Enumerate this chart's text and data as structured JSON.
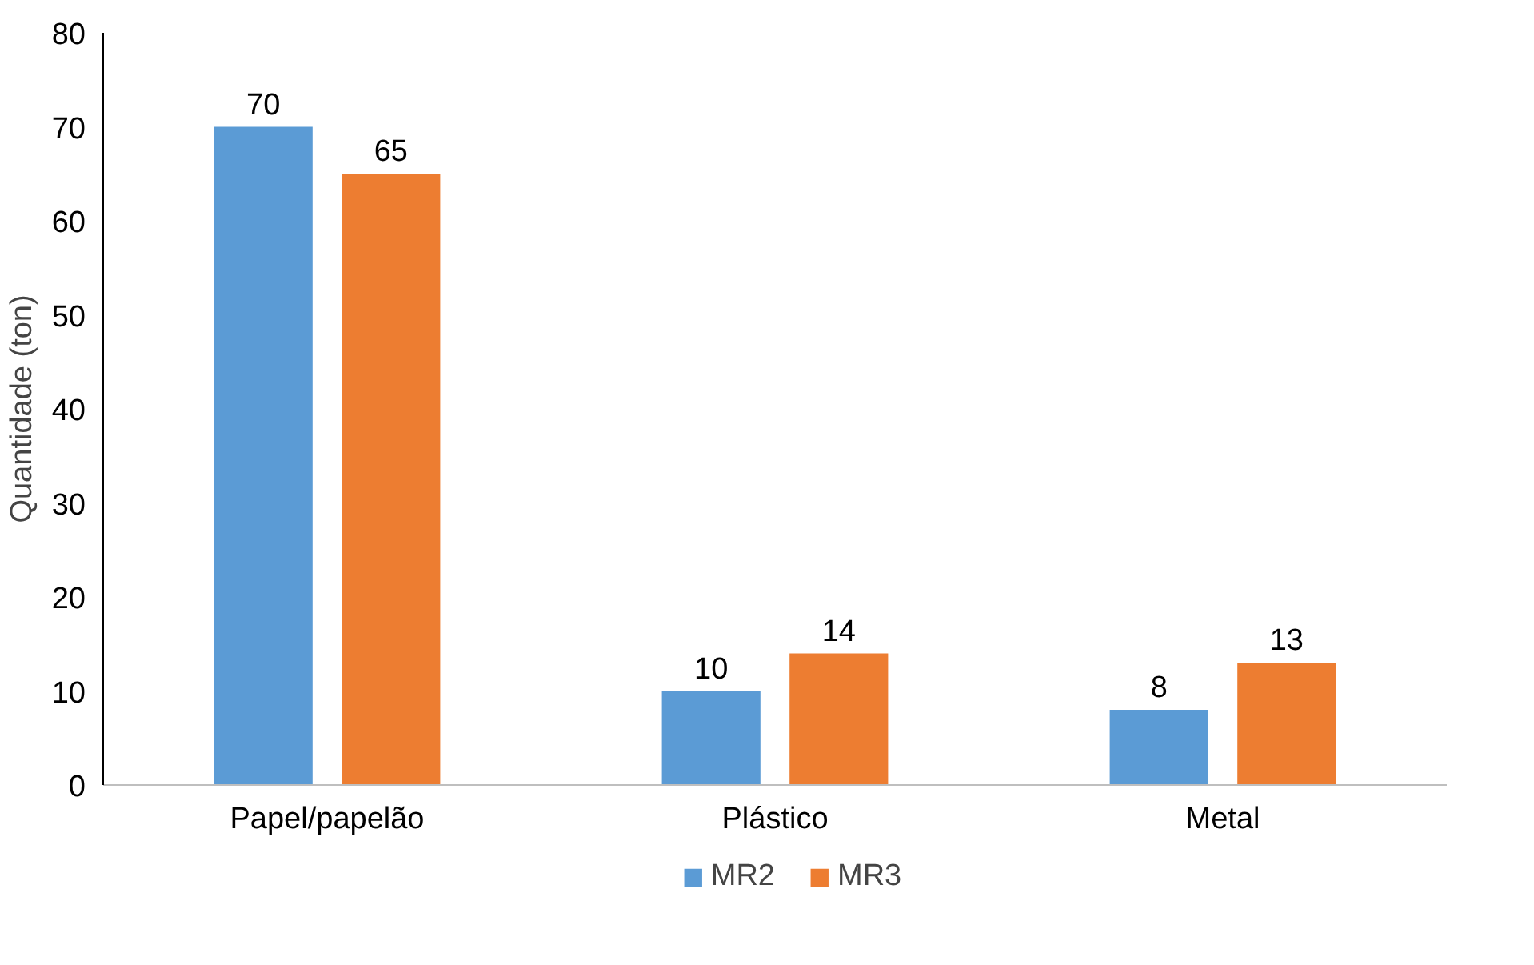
{
  "chart_data": {
    "type": "bar",
    "ylabel": "Quantidade (ton)",
    "categories": [
      "Papel/papelão",
      "Plástico",
      "Metal"
    ],
    "series": [
      {
        "name": "MR2",
        "color": "#5b9bd5",
        "values": [
          70,
          10,
          8
        ]
      },
      {
        "name": "MR3",
        "color": "#ed7d31",
        "values": [
          65,
          14,
          13
        ]
      }
    ],
    "ylim": [
      0,
      80
    ],
    "yticks": [
      0,
      10,
      20,
      30,
      40,
      50,
      60,
      70,
      80
    ],
    "grid": false,
    "legend": "bottom",
    "data_labels": true
  }
}
